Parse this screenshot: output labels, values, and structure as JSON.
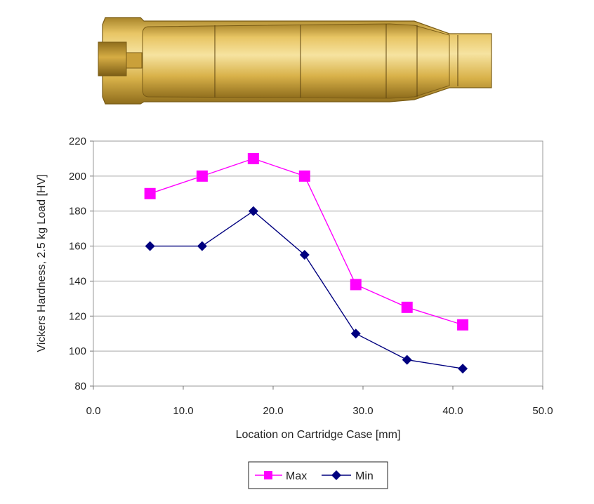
{
  "chart_data": {
    "type": "line",
    "xlabel": "Location on Cartridge Case [mm]",
    "ylabel": "Vickers Hardness, 2.5 kg Load [HV]",
    "xlim": [
      0,
      50
    ],
    "ylim": [
      80,
      220
    ],
    "x_ticks": [
      "0.0",
      "10.0",
      "20.0",
      "30.0",
      "40.0",
      "50.0"
    ],
    "y_ticks": [
      "80",
      "100",
      "120",
      "140",
      "160",
      "180",
      "200",
      "220"
    ],
    "grid": "horizontal",
    "legend_position": "bottom",
    "series": [
      {
        "name": "Max",
        "marker": "square",
        "color": "#ff00ff",
        "x": [
          6.3,
          12.1,
          17.8,
          23.5,
          29.2,
          34.9,
          41.1
        ],
        "y": [
          190,
          200,
          210,
          200,
          138,
          125,
          115
        ]
      },
      {
        "name": "Min",
        "marker": "diamond",
        "color": "#00007f",
        "x": [
          6.3,
          12.1,
          17.8,
          23.5,
          29.2,
          34.9,
          41.1
        ],
        "y": [
          160,
          160,
          180,
          155,
          110,
          95,
          90
        ]
      }
    ]
  },
  "cartridge_image": {
    "icon": "cartridge-case-icon",
    "body_color": "#d9b24a",
    "highlight_color": "#f3dc8c",
    "shadow_color": "#9c7a22"
  }
}
